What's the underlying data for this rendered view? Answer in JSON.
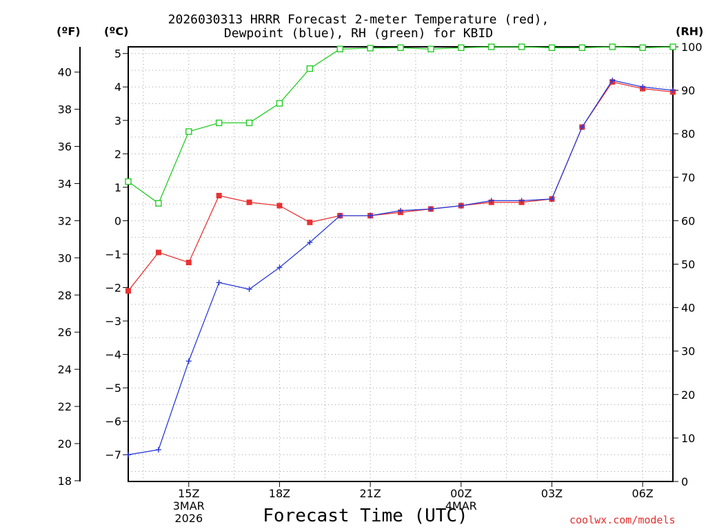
{
  "title_line1": "2026030313 HRRR Forecast 2-meter Temperature (red),",
  "title_line2": "Dewpoint (blue), RH (green) for KBID",
  "unit_f": "(ºF)",
  "unit_c": "(ºC)",
  "unit_rh": "(RH)",
  "xlabel": "Forecast Time (UTC)",
  "credit": "coolwx.com/models",
  "colors": {
    "temperature": "#e83232",
    "dewpoint": "#2a3ad8",
    "rh": "#22cc22",
    "grid": "#999999",
    "axis": "#000000"
  },
  "chart_data": {
    "type": "line",
    "title": "2026030313 HRRR Forecast 2-meter Temperature (red), Dewpoint (blue), RH (green) for KBID",
    "xlabel": "Forecast Time (UTC)",
    "x_hours": [
      13,
      14,
      15,
      16,
      17,
      18,
      19,
      20,
      21,
      22,
      23,
      24,
      25,
      26,
      27,
      28,
      29,
      30,
      31
    ],
    "xlim": [
      13,
      31
    ],
    "x_ticks": [
      {
        "hour": 15,
        "lines": [
          "15Z",
          "3MAR",
          "2026"
        ]
      },
      {
        "hour": 18,
        "lines": [
          "18Z"
        ]
      },
      {
        "hour": 21,
        "lines": [
          "21Z"
        ]
      },
      {
        "hour": 24,
        "lines": [
          "00Z",
          "4MAR"
        ]
      },
      {
        "hour": 27,
        "lines": [
          "03Z"
        ]
      },
      {
        "hour": 30,
        "lines": [
          "06Z"
        ]
      }
    ],
    "ylim_c": [
      -7.8,
      5.2
    ],
    "ylim_rh": [
      0,
      100
    ],
    "y_ticks_c": [
      "-7",
      "-6",
      "-5",
      "-4",
      "-3",
      "-2",
      "-1",
      "0",
      "1",
      "2",
      "3",
      "4",
      "5"
    ],
    "y_ticks_f": [
      "18",
      "20",
      "22",
      "24",
      "26",
      "28",
      "30",
      "32",
      "34",
      "36",
      "38",
      "40"
    ],
    "y_ticks_rh": [
      "0",
      "10",
      "20",
      "30",
      "40",
      "50",
      "60",
      "70",
      "80",
      "90",
      "100"
    ],
    "series": [
      {
        "name": "Temperature (°C)",
        "axis": "c",
        "marker": "square-filled",
        "values": [
          -2.1,
          -0.95,
          -1.25,
          0.75,
          0.55,
          0.45,
          -0.05,
          0.15,
          0.15,
          0.25,
          0.35,
          0.45,
          0.55,
          0.55,
          0.65,
          2.8,
          4.15,
          3.95,
          3.85
        ]
      },
      {
        "name": "Dewpoint (°C)",
        "axis": "c",
        "marker": "plus",
        "values": [
          -7.0,
          -6.85,
          -4.2,
          -1.85,
          -2.05,
          -1.4,
          -0.65,
          0.15,
          0.15,
          0.3,
          0.35,
          0.45,
          0.6,
          0.6,
          0.65,
          2.8,
          4.2,
          4.0,
          3.9
        ]
      },
      {
        "name": "RH (%)",
        "axis": "rh",
        "marker": "square-open",
        "values": [
          69,
          64,
          80.5,
          82.5,
          82.5,
          87,
          95,
          99.5,
          99.7,
          99.8,
          99.5,
          99.8,
          100,
          100,
          99.8,
          99.8,
          100,
          99.8,
          100
        ]
      }
    ]
  }
}
